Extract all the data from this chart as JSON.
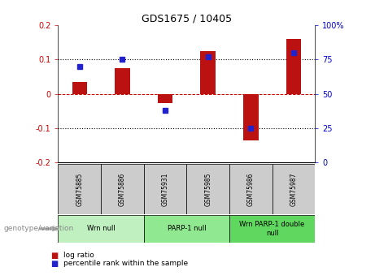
{
  "title": "GDS1675 / 10405",
  "samples": [
    "GSM75885",
    "GSM75886",
    "GSM75931",
    "GSM75985",
    "GSM75986",
    "GSM75987"
  ],
  "log_ratios": [
    0.035,
    0.075,
    -0.028,
    0.125,
    -0.135,
    0.16
  ],
  "percentile_ranks": [
    70,
    75,
    38,
    77,
    25,
    80
  ],
  "groups": [
    {
      "label": "Wrn null",
      "start": 0,
      "end": 2,
      "color": "#b8f0b8"
    },
    {
      "label": "PARP-1 null",
      "start": 2,
      "end": 4,
      "color": "#90e890"
    },
    {
      "label": "Wrn PARP-1 double\nnull",
      "start": 4,
      "end": 6,
      "color": "#70d870"
    }
  ],
  "bar_color": "#bb1111",
  "dot_color": "#2222cc",
  "ylim_left": [
    -0.2,
    0.2
  ],
  "ylim_right": [
    0,
    100
  ],
  "yticks_left": [
    -0.2,
    -0.1,
    0.0,
    0.1,
    0.2
  ],
  "yticks_right": [
    0,
    25,
    50,
    75,
    100
  ],
  "hline_y": [
    0.1,
    0.0,
    -0.1
  ],
  "hline_colors": [
    "black",
    "#cc0000",
    "black"
  ],
  "hline_styles": [
    "dotted",
    "dashed",
    "dotted"
  ],
  "bar_width": 0.35,
  "left_tick_color": "#cc0000",
  "right_tick_color": "#0000cc",
  "legend_items": [
    "log ratio",
    "percentile rank within the sample"
  ],
  "genotype_label": "genotype/variation",
  "sample_box_color": "#cccccc",
  "group_colors": [
    "#c0f0c0",
    "#90e890",
    "#60d860"
  ]
}
